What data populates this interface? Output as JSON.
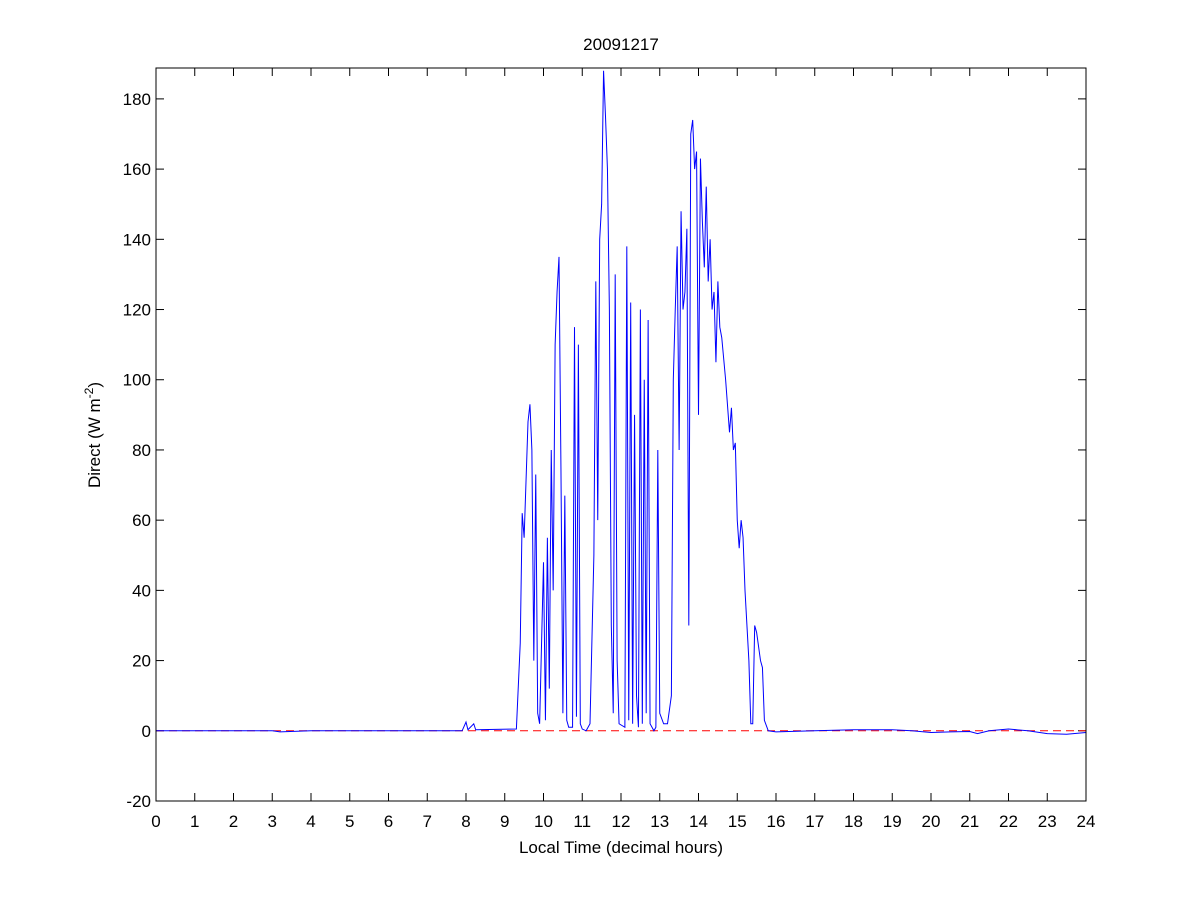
{
  "chart_data": {
    "type": "line",
    "title": "20091217",
    "x_label": "Local Time (decimal hours)",
    "y_label": "Direct (W m",
    "y_label_sup": "-2",
    "y_label_end": ")",
    "xlim": [
      0,
      24
    ],
    "ylim": [
      -20,
      188.8
    ],
    "xticks": [
      0,
      1,
      2,
      3,
      4,
      5,
      6,
      7,
      8,
      9,
      10,
      11,
      12,
      13,
      14,
      15,
      16,
      17,
      18,
      19,
      20,
      21,
      22,
      23,
      24
    ],
    "yticks": [
      -20,
      0,
      20,
      40,
      60,
      80,
      100,
      120,
      140,
      160,
      180
    ],
    "reference_line": {
      "value": 0,
      "color": "#ff0000"
    },
    "x": [
      0,
      3,
      3.2,
      4,
      7.9,
      8.0,
      8.05,
      8.2,
      8.25,
      9.3,
      9.4,
      9.45,
      9.5,
      9.6,
      9.65,
      9.7,
      9.75,
      9.8,
      9.85,
      9.9,
      10.0,
      10.05,
      10.1,
      10.15,
      10.2,
      10.25,
      10.3,
      10.35,
      10.4,
      10.45,
      10.5,
      10.55,
      10.6,
      10.65,
      10.75,
      10.8,
      10.85,
      10.9,
      10.95,
      11.0,
      11.1,
      11.2,
      11.3,
      11.35,
      11.4,
      11.45,
      11.5,
      11.55,
      11.6,
      11.65,
      11.7,
      11.75,
      11.8,
      11.85,
      11.9,
      11.95,
      12.1,
      12.15,
      12.2,
      12.25,
      12.3,
      12.35,
      12.4,
      12.45,
      12.5,
      12.55,
      12.6,
      12.65,
      12.7,
      12.75,
      12.8,
      12.85,
      12.9,
      12.95,
      13.0,
      13.1,
      13.2,
      13.3,
      13.35,
      13.4,
      13.45,
      13.5,
      13.55,
      13.6,
      13.65,
      13.7,
      13.75,
      13.8,
      13.85,
      13.9,
      13.95,
      14.0,
      14.05,
      14.1,
      14.15,
      14.2,
      14.25,
      14.3,
      14.35,
      14.4,
      14.45,
      14.5,
      14.55,
      14.6,
      14.7,
      14.8,
      14.85,
      14.9,
      14.95,
      15.0,
      15.05,
      15.1,
      15.15,
      15.2,
      15.3,
      15.35,
      15.4,
      15.45,
      15.5,
      15.6,
      15.65,
      15.7,
      15.8,
      16,
      17,
      18,
      19,
      19.5,
      20,
      20.5,
      21,
      21.2,
      21.5,
      22,
      22.5,
      23,
      23.5,
      24
    ],
    "series": [
      {
        "color": "#0000ff",
        "values": [
          0,
          0,
          -0.3,
          0,
          0,
          2.5,
          0.3,
          2,
          0.3,
          0.5,
          25,
          62,
          55,
          88,
          93,
          80,
          20,
          73,
          5,
          2,
          48,
          3,
          55,
          12,
          80,
          40,
          110,
          125,
          135,
          75,
          5,
          67,
          3,
          1,
          1,
          115,
          4,
          110,
          2,
          0.5,
          0,
          2,
          50,
          128,
          60,
          140,
          150,
          188,
          175,
          160,
          120,
          30,
          5,
          130,
          20,
          2,
          1,
          138,
          3,
          122,
          2,
          90,
          10,
          1,
          120,
          2,
          100,
          5,
          117,
          2,
          1,
          0,
          1,
          80,
          5,
          2,
          2,
          10,
          100,
          120,
          138,
          80,
          148,
          120,
          125,
          143,
          30,
          170,
          174,
          160,
          165,
          90,
          163,
          145,
          132,
          155,
          128,
          140,
          120,
          125,
          105,
          128,
          115,
          112,
          100,
          85,
          92,
          80,
          82,
          60,
          52,
          60,
          55,
          40,
          20,
          2,
          2,
          30,
          28,
          20,
          18,
          3,
          0,
          -0.3,
          0,
          0.3,
          0.3,
          0,
          -0.5,
          -0.3,
          -0.2,
          -0.8,
          0,
          0.5,
          0,
          -0.8,
          -1,
          -0.5
        ]
      }
    ]
  }
}
